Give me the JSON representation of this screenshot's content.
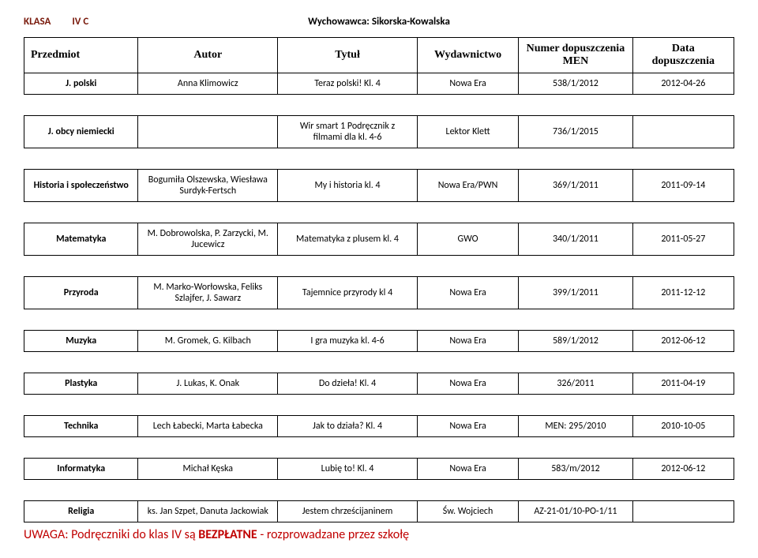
{
  "header": {
    "klasa_label": "KLASA",
    "klasa_value": "IV C",
    "wych_label": "Wychowawca:",
    "wych_value": "Sikorska-Kowalska"
  },
  "columns": {
    "przedmiot": "Przedmiot",
    "autor": "Autor",
    "tytul": "Tytuł",
    "wydawnictwo": "Wydawnictwo",
    "numer": "Numer dopuszczenia MEN",
    "data": "Data dopuszczenia"
  },
  "rows": [
    {
      "przedmiot": "J. polski",
      "autor": "Anna Klimowicz",
      "tytul": "Teraz polski! Kl. 4",
      "wyd": "Nowa Era",
      "numer": "538/1/2012",
      "data": "2012-04-26"
    },
    {
      "przedmiot": "J. obcy niemiecki",
      "autor": "",
      "tytul": "Wir smart 1 Podręcznik z filmami dla kl. 4-6",
      "wyd": "Lektor Klett",
      "numer": "736/1/2015",
      "data": ""
    },
    {
      "przedmiot": "Historia i społeczeństwo",
      "autor": "Bogumiła Olszewska, Wiesława Surdyk-Fertsch",
      "tytul": "My i historia kl. 4",
      "wyd": "Nowa Era/PWN",
      "numer": "369/1/2011",
      "data": "2011-09-14"
    },
    {
      "przedmiot": "Matematyka",
      "autor": "M. Dobrowolska, P. Zarzycki, M. Jucewicz",
      "tytul": "Matematyka z plusem kl. 4",
      "wyd": "GWO",
      "numer": "340/1/2011",
      "data": "2011-05-27"
    },
    {
      "przedmiot": "Przyroda",
      "autor": "M. Marko-Worłowska, Feliks Szlajfer, J. Sawarz",
      "tytul": "Tajemnice przyrody kl 4",
      "wyd": "Nowa Era",
      "numer": "399/1/2011",
      "data": "2011-12-12"
    },
    {
      "przedmiot": "Muzyka",
      "autor": "M. Gromek, G. Kilbach",
      "tytul": "I gra muzyka kl. 4-6",
      "wyd": "Nowa Era",
      "numer": "589/1/2012",
      "data": "2012-06-12"
    },
    {
      "przedmiot": "Plastyka",
      "autor": "J. Lukas, K. Onak",
      "tytul": "Do dzieła! Kl. 4",
      "wyd": "Nowa Era",
      "numer": "326/2011",
      "data": "2011-04-19"
    },
    {
      "przedmiot": "Technika",
      "autor": "Lech Łabecki, Marta Łabecka",
      "tytul": "Jak to działa? Kl. 4",
      "wyd": "Nowa Era",
      "numer": "MEN: 295/2010",
      "data": "2010-10-05"
    },
    {
      "przedmiot": "Informatyka",
      "autor": "Michał Kęska",
      "tytul": "Lubię to! Kl. 4",
      "wyd": "Nowa Era",
      "numer": "583/m/2012",
      "data": "2012-06-12"
    },
    {
      "przedmiot": "Religia",
      "autor": "ks. Jan Szpet, Danuta Jackowiak",
      "tytul": "Jestem chrześcijaninem",
      "wyd": "Św. Wojciech",
      "numer": "AZ-21-01/10-PO-1/11",
      "data": ""
    }
  ],
  "footer": {
    "uwaga_prefix": "UWAGA:",
    "uwaga_mid": " Podręczniki do klas IV są ",
    "uwaga_bold": "BEZPŁATNE",
    "uwaga_suffix": " - rozprowadzane przez szkołę"
  }
}
